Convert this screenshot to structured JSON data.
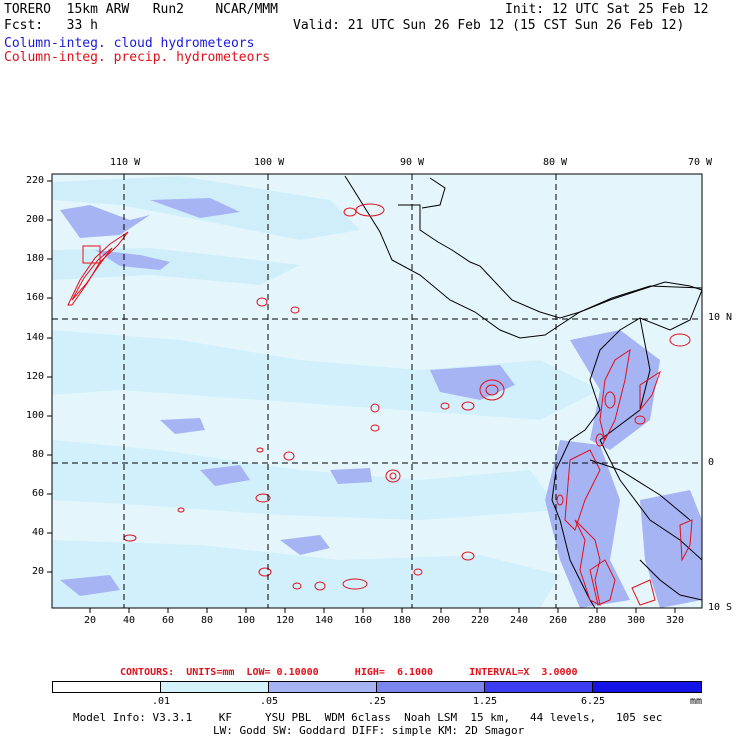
{
  "header": {
    "line1_left": "TORERO  15km ARW   Run2    NCAR/MMM",
    "line1_right": "Init: 12 UTC Sat 25 Feb 12",
    "line2_left": "Fcst:   33 h",
    "line2_right": "Valid: 21 UTC Sun 26 Feb 12 (15 CST Sun 26 Feb 12)",
    "line3": "Column-integ. cloud hydrometeors",
    "line4": "Column-integ. precip. hydrometeors"
  },
  "map": {
    "lon_labels": [
      "110 W",
      "100 W",
      "90 W",
      "80 W",
      "70 W"
    ],
    "lat_labels": [
      "10 N",
      "0",
      "10 S"
    ],
    "y_ticks": [
      "220",
      "200",
      "180",
      "160",
      "140",
      "120",
      "100",
      "80",
      "60",
      "40",
      "20"
    ],
    "x_ticks": [
      "20",
      "40",
      "60",
      "80",
      "100",
      "120",
      "140",
      "160",
      "180",
      "200",
      "220",
      "240",
      "260",
      "280",
      "300",
      "320"
    ]
  },
  "contours_line": "CONTOURS:  UNITS=mm  LOW= 0.10000      HIGH=  6.1000      INTERVAL=X  3.0000",
  "colorbar": {
    "labels": [
      ".01",
      ".05",
      ".25",
      "1.25",
      "6.25"
    ],
    "units": "mm",
    "colors": [
      "#ffffff",
      "#d4f2fa",
      "#a6b4f4",
      "#7a86ee",
      "#3c3cf0",
      "#1414e6"
    ]
  },
  "footer": {
    "line1": "Model Info: V3.3.1    KF     YSU PBL  WDM 6class  Noah LSM  15 km,   44 levels,   105 sec",
    "line2": "LW: Godd SW: Goddard DIFF: simple KM: 2D Smagor"
  }
}
